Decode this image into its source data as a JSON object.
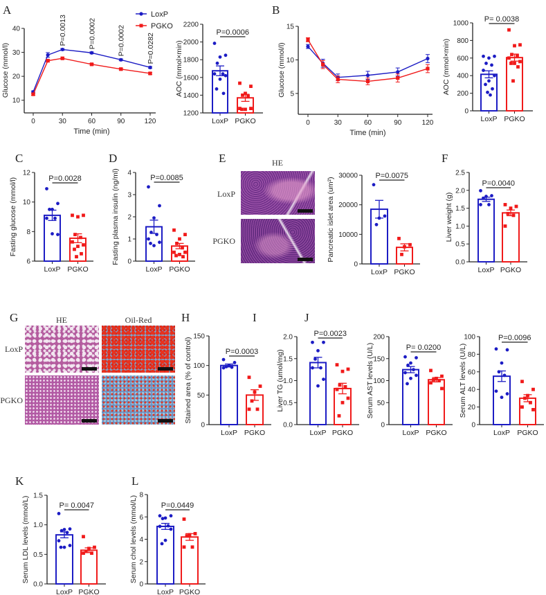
{
  "colors": {
    "loxp": "#1c1cc4",
    "pgko": "#f01a1a"
  },
  "panel_letters": {
    "A": "A",
    "B": "B",
    "C": "C",
    "D": "D",
    "E": "E",
    "F": "F",
    "G": "G",
    "H": "H",
    "I": "I",
    "J": "J",
    "K": "K",
    "L": "L"
  },
  "legend": {
    "loxp": "LoxP",
    "pgko": "PGKO"
  },
  "histology": {
    "E": {
      "stain": "HE",
      "rows": [
        "LoxP",
        "PGKO"
      ]
    },
    "G": {
      "stains": [
        "HE",
        "Oil-Red"
      ],
      "rows": [
        "LoxP",
        "PGKO"
      ]
    }
  },
  "chart_data": [
    {
      "id": "A_line",
      "panel": "A",
      "type": "line",
      "xlabel": "Time (min)",
      "ylabel": "Glucose (mmol/l)",
      "x": [
        0,
        15,
        30,
        60,
        90,
        120
      ],
      "xticks": [
        0,
        30,
        60,
        90,
        120
      ],
      "yticks": [
        10,
        20,
        30,
        40
      ],
      "ylim": [
        5,
        40
      ],
      "series": [
        {
          "name": "LoxP",
          "values": [
            13.5,
            28.9,
            31.2,
            29.8,
            26.9,
            23.7
          ],
          "sem": [
            0.4,
            1.0,
            0.4,
            0.4,
            0.4,
            0.4
          ]
        },
        {
          "name": "PGKO",
          "values": [
            12.5,
            26.5,
            27.5,
            25.0,
            23.0,
            21.2
          ],
          "sem": [
            0.4,
            0.5,
            0.4,
            0.4,
            0.4,
            0.4
          ]
        }
      ],
      "annotations": [
        {
          "x": 30,
          "text": "P=0.0013"
        },
        {
          "x": 60,
          "text": "P=0.0002"
        },
        {
          "x": 90,
          "text": "P=0.0002"
        },
        {
          "x": 120,
          "text": "P=0.0282"
        }
      ]
    },
    {
      "id": "A_bar",
      "panel": "A",
      "type": "bar",
      "ylabel": "AOC (mmol×min)",
      "categories": [
        "LoxP",
        "PGKO"
      ],
      "ylim": [
        1200,
        2200
      ],
      "yticks": [
        1200,
        1400,
        1600,
        1800,
        2000,
        2200
      ],
      "p_label": "P=0.0006",
      "values": [
        1675,
        1370
      ],
      "sem": [
        55,
        40
      ],
      "points": [
        [
          1985,
          1850,
          1830,
          1760,
          1640,
          1640,
          1620,
          1580,
          1470,
          1420
        ],
        [
          1535,
          1500,
          1420,
          1400,
          1390,
          1250,
          1250,
          1240,
          1240
        ]
      ]
    },
    {
      "id": "B_line",
      "panel": "B",
      "type": "line",
      "xlabel": "Time (min)",
      "ylabel": "Glucose (mmol/l)",
      "x": [
        0,
        15,
        30,
        60,
        90,
        120
      ],
      "xticks": [
        0,
        30,
        60,
        90,
        120
      ],
      "yticks": [
        5,
        10,
        15
      ],
      "ylim": [
        2,
        15
      ],
      "series": [
        {
          "name": "LoxP",
          "values": [
            12.0,
            9.5,
            7.4,
            7.7,
            8.2,
            10.2
          ],
          "sem": [
            0.3,
            0.6,
            0.5,
            0.6,
            0.6,
            0.6
          ]
        },
        {
          "name": "PGKO",
          "values": [
            13.0,
            9.3,
            7.1,
            6.8,
            7.3,
            8.7
          ],
          "sem": [
            0.3,
            0.6,
            0.5,
            0.5,
            0.6,
            0.6
          ]
        }
      ],
      "annotations": []
    },
    {
      "id": "B_bar",
      "panel": "B",
      "type": "bar",
      "ylabel": "AOC (mmol×min)",
      "categories": [
        "LoxP",
        "PGKO"
      ],
      "ylim": [
        0,
        1000
      ],
      "yticks": [
        0,
        200,
        400,
        600,
        800,
        1000
      ],
      "p_label": "P= 0.0038",
      "values": [
        415,
        605
      ],
      "sem": [
        40,
        40
      ],
      "points": [
        [
          620,
          620,
          600,
          540,
          520,
          460,
          400,
          340,
          300,
          250,
          210,
          180
        ],
        [
          920,
          750,
          740,
          640,
          630,
          600,
          560,
          540,
          540,
          500,
          340
        ]
      ]
    },
    {
      "id": "C",
      "panel": "C",
      "type": "bar",
      "ylabel": "Fasting glucose (mmol/l)",
      "categories": [
        "LoxP",
        "PGKO"
      ],
      "ylim": [
        6,
        12
      ],
      "yticks": [
        6,
        8,
        10,
        12
      ],
      "p_label": "P=0.0028",
      "values": [
        9.1,
        7.55
      ],
      "sem": [
        0.35,
        0.3
      ],
      "points": [
        [
          10.9,
          9.9,
          9.5,
          9.5,
          8.9,
          8.9,
          7.8,
          7.85
        ],
        [
          9.1,
          9.1,
          9.0,
          7.8,
          7.6,
          7.3,
          7.1,
          7.0,
          6.8,
          6.5,
          6.3
        ]
      ]
    },
    {
      "id": "D",
      "panel": "D",
      "type": "bar",
      "ylabel": "Fasting plasma insulin (ng/ml)",
      "categories": [
        "LoxP",
        "PGKO"
      ],
      "ylim": [
        0,
        4
      ],
      "yticks": [
        0,
        1,
        2,
        3,
        4
      ],
      "p_label": "P=0.0085",
      "values": [
        1.55,
        0.68
      ],
      "sem": [
        0.3,
        0.12
      ],
      "points": [
        [
          3.35,
          2.5,
          1.95,
          1.3,
          1.2,
          1.0,
          0.85,
          0.7,
          0.8
        ],
        [
          1.4,
          1.2,
          1.0,
          0.8,
          0.6,
          0.4,
          0.4,
          0.3,
          0.25,
          0.2
        ]
      ]
    },
    {
      "id": "E",
      "panel": "E",
      "type": "bar",
      "ylabel": "Pancreatic islet area (um²)",
      "categories": [
        "LoxP",
        "PGKO"
      ],
      "ylim": [
        0,
        30000
      ],
      "yticks": [
        0,
        10000,
        20000,
        30000
      ],
      "p_label": "P=0.0075",
      "values": [
        18500,
        5600
      ],
      "sem": [
        3000,
        1200
      ],
      "points": [
        [
          26800,
          16200,
          15500,
          13300
        ],
        [
          8600,
          6500,
          5800,
          3200
        ]
      ]
    },
    {
      "id": "F",
      "panel": "F",
      "type": "bar",
      "ylabel": "Liver weight (g)",
      "categories": [
        "LoxP",
        "PGKO"
      ],
      "ylim": [
        0,
        2.5
      ],
      "yticks": [
        "0.0",
        "0.5",
        "1.0",
        "1.5",
        "2.0",
        "2.5"
      ],
      "p_label": "P=0.0040",
      "values": [
        1.75,
        1.37
      ],
      "sem": [
        0.06,
        0.08
      ],
      "points": [
        [
          1.99,
          1.85,
          1.83,
          1.78,
          1.6,
          1.6
        ],
        [
          1.6,
          1.55,
          1.5,
          1.35,
          1.3,
          1.0
        ]
      ]
    },
    {
      "id": "G",
      "panel": "G",
      "type": "bar",
      "ylabel": "Stained area (% of control)",
      "categories": [
        "LoxP",
        "PGKO"
      ],
      "ylim": [
        0,
        150
      ],
      "yticks": [
        0,
        50,
        100,
        150
      ],
      "p_label": "P=0.0003",
      "values": [
        100,
        50
      ],
      "sem": [
        2.5,
        9
      ],
      "points": [
        [
          110,
          105,
          100,
          98,
          97,
          96
        ],
        [
          80,
          65,
          55,
          40,
          26,
          26
        ]
      ]
    },
    {
      "id": "H",
      "panel": "H",
      "type": "bar",
      "ylabel": "Liver TG (umol/mg)",
      "categories": [
        "LoxP",
        "PGKO"
      ],
      "ylim": [
        0,
        2
      ],
      "yticks": [
        "0.0",
        "0.5",
        "1.0",
        "1.5",
        "2.0"
      ],
      "p_label": "P=0.0023",
      "values": [
        1.41,
        0.82
      ],
      "sem": [
        0.12,
        0.12
      ],
      "points": [
        [
          1.87,
          1.87,
          1.68,
          1.49,
          1.29,
          1.29,
          1.03,
          0.88
        ],
        [
          1.36,
          1.26,
          1.21,
          0.9,
          0.86,
          0.8,
          0.6,
          0.5,
          0.2
        ]
      ]
    },
    {
      "id": "I",
      "panel": "I",
      "type": "bar",
      "ylabel": "Serum AST levels (U/L)",
      "categories": [
        "LoxP",
        "PGKO"
      ],
      "ylim": [
        0,
        200
      ],
      "yticks": [
        0,
        50,
        100,
        150,
        200
      ],
      "p_label": "P= 0.0200",
      "values": [
        125,
        102
      ],
      "sem": [
        7,
        5
      ],
      "points": [
        [
          154,
          152,
          140,
          135,
          125,
          118,
          112,
          105,
          93
        ],
        [
          123,
          110,
          105,
          102,
          100,
          95,
          82
        ]
      ]
    },
    {
      "id": "J",
      "panel": "J",
      "type": "bar",
      "ylabel": "Serum ALT levels (U/L)",
      "categories": [
        "LoxP",
        "PGKO"
      ],
      "ylim": [
        0,
        100
      ],
      "yticks": [
        0,
        20,
        40,
        60,
        80,
        100
      ],
      "p_label": "P=0.0096",
      "values": [
        55,
        30
      ],
      "sem": [
        6,
        4
      ],
      "points": [
        [
          86,
          85,
          70,
          60,
          56,
          38,
          35,
          31
        ],
        [
          49,
          40,
          33,
          30,
          25,
          20,
          17
        ]
      ]
    },
    {
      "id": "K",
      "panel": "K",
      "type": "bar",
      "ylabel": "Serum LDL levels (mmol/L)",
      "categories": [
        "LoxP",
        "PGKO"
      ],
      "ylim": [
        0,
        1.5
      ],
      "yticks": [
        "0.0",
        "0.5",
        "1.0",
        "1.5"
      ],
      "p_label": "P= 0.0047",
      "values": [
        0.83,
        0.57
      ],
      "sem": [
        0.05,
        0.04
      ],
      "points": [
        [
          1.19,
          0.93,
          0.92,
          0.9,
          0.87,
          0.73,
          0.65,
          0.62,
          0.62
        ],
        [
          0.8,
          0.62,
          0.6,
          0.55,
          0.52,
          0.52
        ]
      ]
    },
    {
      "id": "L",
      "panel": "L",
      "type": "bar",
      "ylabel": "Serum chol levels (mmol/L)",
      "categories": [
        "LoxP",
        "PGKO"
      ],
      "ylim": [
        0,
        8
      ],
      "yticks": [
        0,
        2,
        4,
        6,
        8
      ],
      "p_label": "P=0.0449",
      "values": [
        5.15,
        4.2
      ],
      "sem": [
        0.27,
        0.3
      ],
      "points": [
        [
          6.1,
          6.1,
          5.9,
          5.85,
          5.2,
          5.15,
          4.9,
          3.9,
          3.6
        ],
        [
          5.8,
          4.5,
          4.4,
          4.3,
          3.3,
          3.3
        ]
      ]
    }
  ]
}
